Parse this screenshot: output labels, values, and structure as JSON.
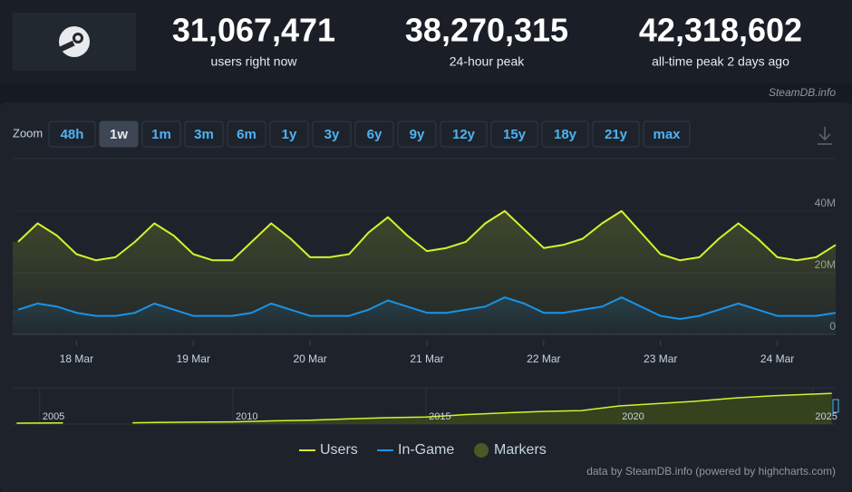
{
  "header": {
    "stats": [
      {
        "value": "31,067,471",
        "label": "users right now"
      },
      {
        "value": "38,270,315",
        "label": "24-hour peak"
      },
      {
        "value": "42,318,602",
        "label": "all-time peak 2 days ago"
      }
    ],
    "source": "SteamDB.info"
  },
  "zoom": {
    "label": "Zoom",
    "buttons": [
      "48h",
      "1w",
      "1m",
      "3m",
      "6m",
      "1y",
      "3y",
      "6y",
      "9y",
      "12y",
      "15y",
      "18y",
      "21y",
      "max"
    ],
    "active": 1
  },
  "chart_data": [
    {
      "type": "line",
      "categories": [
        null,
        null,
        null,
        "18 Mar",
        null,
        null,
        null,
        null,
        null,
        "19 Mar",
        null,
        null,
        null,
        null,
        null,
        "20 Mar",
        null,
        null,
        null,
        null,
        null,
        "21 Mar",
        null,
        null,
        null,
        null,
        null,
        "22 Mar",
        null,
        null,
        null,
        null,
        null,
        "23 Mar",
        null,
        null,
        null,
        null,
        null,
        "24 Mar",
        null,
        null,
        null
      ],
      "series": [
        {
          "name": "Users",
          "color": "#d4f22c",
          "values": [
            30000000,
            36000000,
            32000000,
            26000000,
            24000000,
            25000000,
            30000000,
            36000000,
            32000000,
            26000000,
            24000000,
            24000000,
            30000000,
            36000000,
            31000000,
            25000000,
            25000000,
            26000000,
            33000000,
            38000000,
            32000000,
            27000000,
            28000000,
            30000000,
            36000000,
            40000000,
            34000000,
            28000000,
            29000000,
            31000000,
            36000000,
            40000000,
            33000000,
            26000000,
            24000000,
            25000000,
            31000000,
            36000000,
            31000000,
            25000000,
            24000000,
            25000000,
            29000000
          ]
        },
        {
          "name": "In-Game",
          "color": "#1a93e6",
          "values": [
            8000000,
            10000000,
            9000000,
            7000000,
            6000000,
            6000000,
            7000000,
            10000000,
            8000000,
            6000000,
            6000000,
            6000000,
            7000000,
            10000000,
            8000000,
            6000000,
            6000000,
            6000000,
            8000000,
            11000000,
            9000000,
            7000000,
            7000000,
            8000000,
            9000000,
            12000000,
            10000000,
            7000000,
            7000000,
            8000000,
            9000000,
            12000000,
            9000000,
            6000000,
            5000000,
            6000000,
            8000000,
            10000000,
            8000000,
            6000000,
            6000000,
            6000000,
            7000000
          ]
        }
      ],
      "markers_legend": {
        "name": "Markers",
        "color": "#4a5a26"
      },
      "ylim": [
        0,
        57000000
      ],
      "yticks": [
        0,
        {
          "value": 20000000,
          "label": "20M"
        },
        {
          "value": 40000000,
          "label": "40M"
        }
      ],
      "grid": true,
      "credits": "data by SteamDB.info (powered by highcharts.com)"
    },
    {
      "type": "area",
      "x": [
        2004.4,
        2005,
        2005.6,
        2006.5,
        2007.4,
        2008,
        2009,
        2010,
        2011,
        2012,
        2013,
        2014,
        2015,
        2016,
        2017,
        2018,
        2019,
        2020,
        2021,
        2022,
        2023,
        2024,
        2025,
        2025.5
      ],
      "series": [
        {
          "name": "Users",
          "color": "#d4f22c",
          "values": [
            1200000,
            1300000,
            1400000,
            null,
            1600000,
            2000000,
            2400000,
            2800000,
            4000000,
            5000000,
            6500000,
            8000000,
            9000000,
            12000000,
            14000000,
            16000000,
            17000000,
            23000000,
            26000000,
            29000000,
            33000000,
            36000000,
            38000000,
            39000000
          ]
        }
      ],
      "xlim": [
        2004.3,
        2025.6
      ],
      "xticks": [
        2005,
        2010,
        2015,
        2020,
        2025
      ],
      "ylim": [
        0,
        46000000
      ]
    }
  ]
}
